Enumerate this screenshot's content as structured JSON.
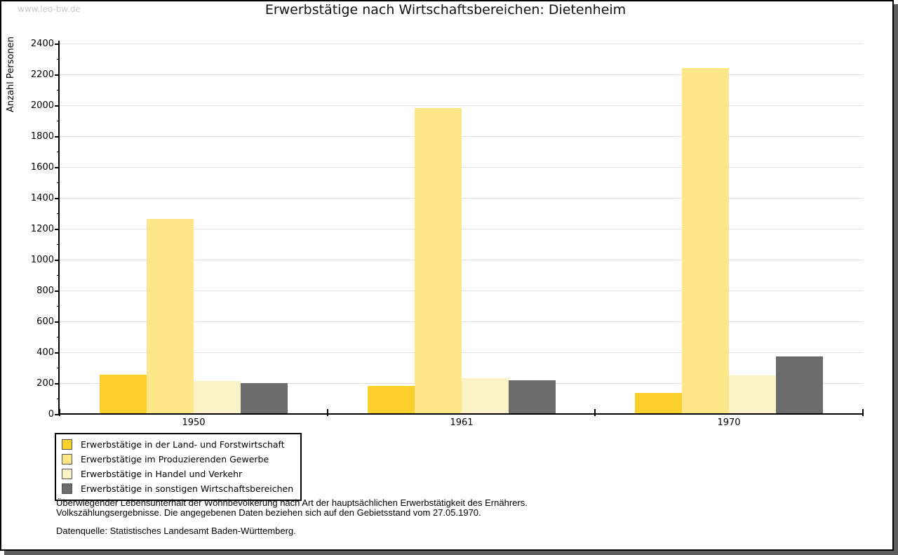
{
  "watermark": "www.leo-bw.de",
  "title": "Erwerbstätige nach Wirtschaftsbereichen: Dietenheim",
  "chart_data": {
    "type": "bar",
    "title": "Erwerbstätige nach Wirtschaftsbereichen: Dietenheim",
    "xlabel": "",
    "ylabel": "Anzahl Personen",
    "ylim": [
      0,
      2400
    ],
    "ytick_step": 200,
    "yminor_step": 100,
    "grid": "horizontal",
    "legend_position": "bottom-left",
    "categories": [
      "1950",
      "1961",
      "1970"
    ],
    "series": [
      {
        "name": "Erwerbstätige in der Land- und Forstwirtschaft",
        "color": "#fbd02d",
        "values": [
          250,
          175,
          130
        ]
      },
      {
        "name": "Erwerbstätige im Produzierenden Gewerbe",
        "color": "#fce687",
        "values": [
          1260,
          1975,
          2235
        ]
      },
      {
        "name": "Erwerbstätige in Handel und Verkehr",
        "color": "#fbf3c6",
        "values": [
          210,
          225,
          245
        ]
      },
      {
        "name": "Erwerbstätige in sonstigen Wirtschaftsbereichen",
        "color": "#6b6b6b",
        "values": [
          195,
          215,
          370
        ]
      }
    ]
  },
  "footer": {
    "line1": "Überwiegender Lebensunterhalt der Wohnbevölkerung nach Art der hauptsächlichen Erwerbstätigkeit des Ernährers.",
    "line2": "Volkszählungsergebnisse. Die angegebenen Daten beziehen sich auf den Gebietsstand vom 27.05.1970.",
    "line3": "Datenquelle: Statistisches Landesamt Baden-Württemberg."
  }
}
